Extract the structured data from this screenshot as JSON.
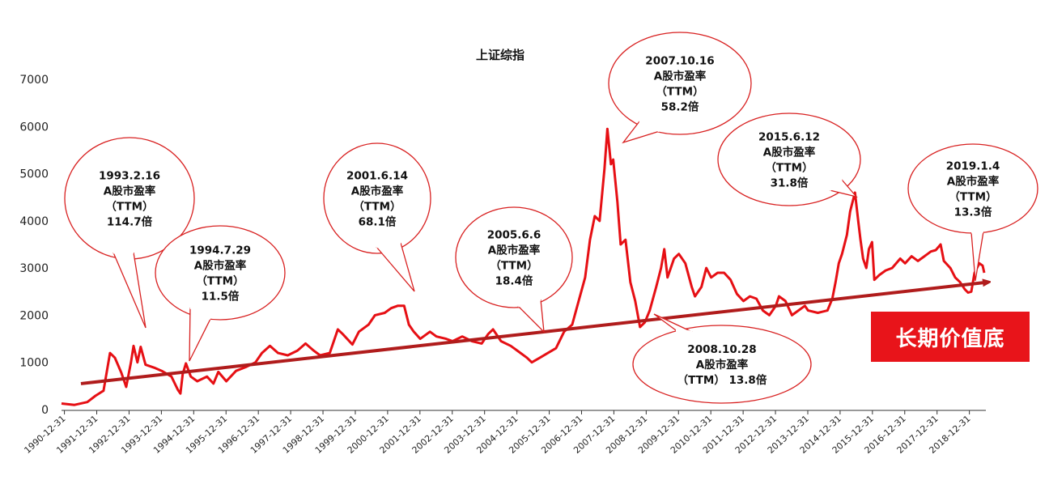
{
  "colors": {
    "series": "#e60f14",
    "trend": "#b01c1c",
    "callout_border": "#d82020",
    "badge_bg": "#e8141a",
    "badge_text": "#ffffff"
  },
  "badge": {
    "label": "长期价值底"
  },
  "chart_data": {
    "type": "line",
    "title": "上证综指",
    "xlabel": "",
    "ylabel": "",
    "ylim": [
      0,
      7000
    ],
    "yticks": [
      0,
      1000,
      2000,
      3000,
      4000,
      5000,
      6000,
      7000
    ],
    "grid": false,
    "legend": "none",
    "x_tick_labels": [
      "1990-12-31",
      "1991-12-31",
      "1992-12-31",
      "1993-12-31",
      "1994-12-31",
      "1995-12-31",
      "1996-12-31",
      "1997-12-31",
      "1998-12-31",
      "1999-12-31",
      "2000-12-31",
      "2001-12-31",
      "2002-12-31",
      "2003-12-31",
      "2004-12-31",
      "2005-12-31",
      "2006-12-31",
      "2007-12-31",
      "2008-12-31",
      "2009-12-31",
      "2010-12-31",
      "2011-12-31",
      "2012-12-31",
      "2013-12-31",
      "2014-12-31",
      "2015-12-31",
      "2016-12-31",
      "2017-12-31",
      "2018-12-31"
    ],
    "series": [
      {
        "name": "",
        "points": [
          [
            1990.9,
            128
          ],
          [
            1991.3,
            100
          ],
          [
            1991.7,
            160
          ],
          [
            1991.95,
            292
          ],
          [
            1992.2,
            400
          ],
          [
            1992.4,
            1200
          ],
          [
            1992.55,
            1100
          ],
          [
            1992.75,
            780
          ],
          [
            1992.9,
            480
          ],
          [
            1993.05,
            1000
          ],
          [
            1993.13,
            1350
          ],
          [
            1993.25,
            1000
          ],
          [
            1993.35,
            1330
          ],
          [
            1993.5,
            950
          ],
          [
            1993.8,
            880
          ],
          [
            1994.0,
            820
          ],
          [
            1994.3,
            700
          ],
          [
            1994.5,
            420
          ],
          [
            1994.58,
            340
          ],
          [
            1994.65,
            750
          ],
          [
            1994.75,
            980
          ],
          [
            1994.9,
            700
          ],
          [
            1995.1,
            600
          ],
          [
            1995.4,
            700
          ],
          [
            1995.6,
            550
          ],
          [
            1995.75,
            800
          ],
          [
            1996.0,
            600
          ],
          [
            1996.3,
            820
          ],
          [
            1996.6,
            900
          ],
          [
            1996.9,
            1000
          ],
          [
            1997.1,
            1200
          ],
          [
            1997.35,
            1350
          ],
          [
            1997.6,
            1200
          ],
          [
            1997.9,
            1150
          ],
          [
            1998.2,
            1250
          ],
          [
            1998.45,
            1400
          ],
          [
            1998.7,
            1250
          ],
          [
            1998.9,
            1150
          ],
          [
            1999.2,
            1200
          ],
          [
            1999.45,
            1700
          ],
          [
            1999.6,
            1600
          ],
          [
            1999.9,
            1380
          ],
          [
            2000.1,
            1650
          ],
          [
            2000.4,
            1800
          ],
          [
            2000.6,
            2000
          ],
          [
            2000.9,
            2050
          ],
          [
            2001.1,
            2150
          ],
          [
            2001.3,
            2200
          ],
          [
            2001.5,
            2200
          ],
          [
            2001.65,
            1800
          ],
          [
            2001.8,
            1650
          ],
          [
            2002.0,
            1500
          ],
          [
            2002.3,
            1650
          ],
          [
            2002.5,
            1550
          ],
          [
            2002.8,
            1500
          ],
          [
            2003.0,
            1450
          ],
          [
            2003.3,
            1550
          ],
          [
            2003.6,
            1450
          ],
          [
            2003.9,
            1400
          ],
          [
            2004.1,
            1600
          ],
          [
            2004.25,
            1700
          ],
          [
            2004.5,
            1450
          ],
          [
            2004.8,
            1350
          ],
          [
            2005.0,
            1250
          ],
          [
            2005.3,
            1100
          ],
          [
            2005.45,
            1000
          ],
          [
            2005.7,
            1100
          ],
          [
            2005.95,
            1200
          ],
          [
            2006.2,
            1300
          ],
          [
            2006.45,
            1650
          ],
          [
            2006.7,
            1800
          ],
          [
            2006.9,
            2300
          ],
          [
            2007.1,
            2800
          ],
          [
            2007.25,
            3600
          ],
          [
            2007.4,
            4100
          ],
          [
            2007.55,
            4000
          ],
          [
            2007.7,
            5100
          ],
          [
            2007.79,
            5950
          ],
          [
            2007.9,
            5200
          ],
          [
            2007.97,
            5300
          ],
          [
            2008.1,
            4400
          ],
          [
            2008.2,
            3500
          ],
          [
            2008.35,
            3600
          ],
          [
            2008.5,
            2700
          ],
          [
            2008.65,
            2300
          ],
          [
            2008.8,
            1750
          ],
          [
            2008.95,
            1850
          ],
          [
            2009.1,
            2100
          ],
          [
            2009.3,
            2600
          ],
          [
            2009.45,
            3000
          ],
          [
            2009.55,
            3400
          ],
          [
            2009.65,
            2800
          ],
          [
            2009.85,
            3200
          ],
          [
            2010.0,
            3300
          ],
          [
            2010.2,
            3100
          ],
          [
            2010.4,
            2600
          ],
          [
            2010.5,
            2400
          ],
          [
            2010.7,
            2600
          ],
          [
            2010.85,
            3000
          ],
          [
            2011.0,
            2800
          ],
          [
            2011.2,
            2900
          ],
          [
            2011.4,
            2900
          ],
          [
            2011.6,
            2750
          ],
          [
            2011.8,
            2450
          ],
          [
            2012.0,
            2300
          ],
          [
            2012.2,
            2400
          ],
          [
            2012.4,
            2350
          ],
          [
            2012.6,
            2100
          ],
          [
            2012.8,
            2000
          ],
          [
            2013.0,
            2200
          ],
          [
            2013.1,
            2400
          ],
          [
            2013.3,
            2300
          ],
          [
            2013.5,
            2000
          ],
          [
            2013.7,
            2100
          ],
          [
            2013.9,
            2200
          ],
          [
            2014.0,
            2100
          ],
          [
            2014.3,
            2050
          ],
          [
            2014.6,
            2100
          ],
          [
            2014.75,
            2350
          ],
          [
            2014.85,
            2700
          ],
          [
            2014.95,
            3100
          ],
          [
            2015.05,
            3300
          ],
          [
            2015.2,
            3700
          ],
          [
            2015.3,
            4200
          ],
          [
            2015.45,
            4600
          ],
          [
            2015.55,
            4000
          ],
          [
            2015.62,
            3600
          ],
          [
            2015.7,
            3200
          ],
          [
            2015.8,
            3000
          ],
          [
            2015.88,
            3400
          ],
          [
            2015.98,
            3550
          ],
          [
            2016.05,
            2750
          ],
          [
            2016.2,
            2850
          ],
          [
            2016.4,
            2950
          ],
          [
            2016.6,
            3000
          ],
          [
            2016.85,
            3200
          ],
          [
            2017.0,
            3100
          ],
          [
            2017.2,
            3250
          ],
          [
            2017.4,
            3150
          ],
          [
            2017.6,
            3250
          ],
          [
            2017.8,
            3350
          ],
          [
            2017.95,
            3380
          ],
          [
            2018.1,
            3500
          ],
          [
            2018.2,
            3150
          ],
          [
            2018.4,
            3000
          ],
          [
            2018.55,
            2800
          ],
          [
            2018.7,
            2700
          ],
          [
            2018.85,
            2550
          ],
          [
            2018.95,
            2480
          ],
          [
            2019.05,
            2500
          ],
          [
            2019.15,
            2900
          ],
          [
            2019.3,
            3100
          ],
          [
            2019.4,
            3050
          ],
          [
            2019.45,
            2900
          ]
        ]
      }
    ],
    "trendline": {
      "start": [
        1991.5,
        550
      ],
      "end": [
        2019.55,
        2700
      ]
    },
    "annotations": [
      {
        "date": "1993.2.16",
        "metric": "A股市盈率",
        "ttm": "（TTM）",
        "value": "114.7倍"
      },
      {
        "date": "1994.7.29",
        "metric": "A股市盈率",
        "ttm": "（TTM）",
        "value": "11.5倍"
      },
      {
        "date": "2001.6.14",
        "metric": "A股市盈率",
        "ttm": "（TTM）",
        "value": "68.1倍"
      },
      {
        "date": "2005.6.6",
        "metric": "A股市盈率",
        "ttm": "（TTM）",
        "value": "18.4倍"
      },
      {
        "date": "2007.10.16",
        "metric": "A股市盈率",
        "ttm": "（TTM）",
        "value": "58.2倍"
      },
      {
        "date": "2008.10.28",
        "metric": "A股市盈率",
        "ttm": "（TTM）  13.8倍",
        "value": ""
      },
      {
        "date": "2015.6.12",
        "metric": "A股市盈率",
        "ttm": "（TTM）",
        "value": "31.8倍"
      },
      {
        "date": "2019.1.4",
        "metric": "A股市盈率",
        "ttm": "（TTM）",
        "value": "13.3倍"
      }
    ]
  }
}
